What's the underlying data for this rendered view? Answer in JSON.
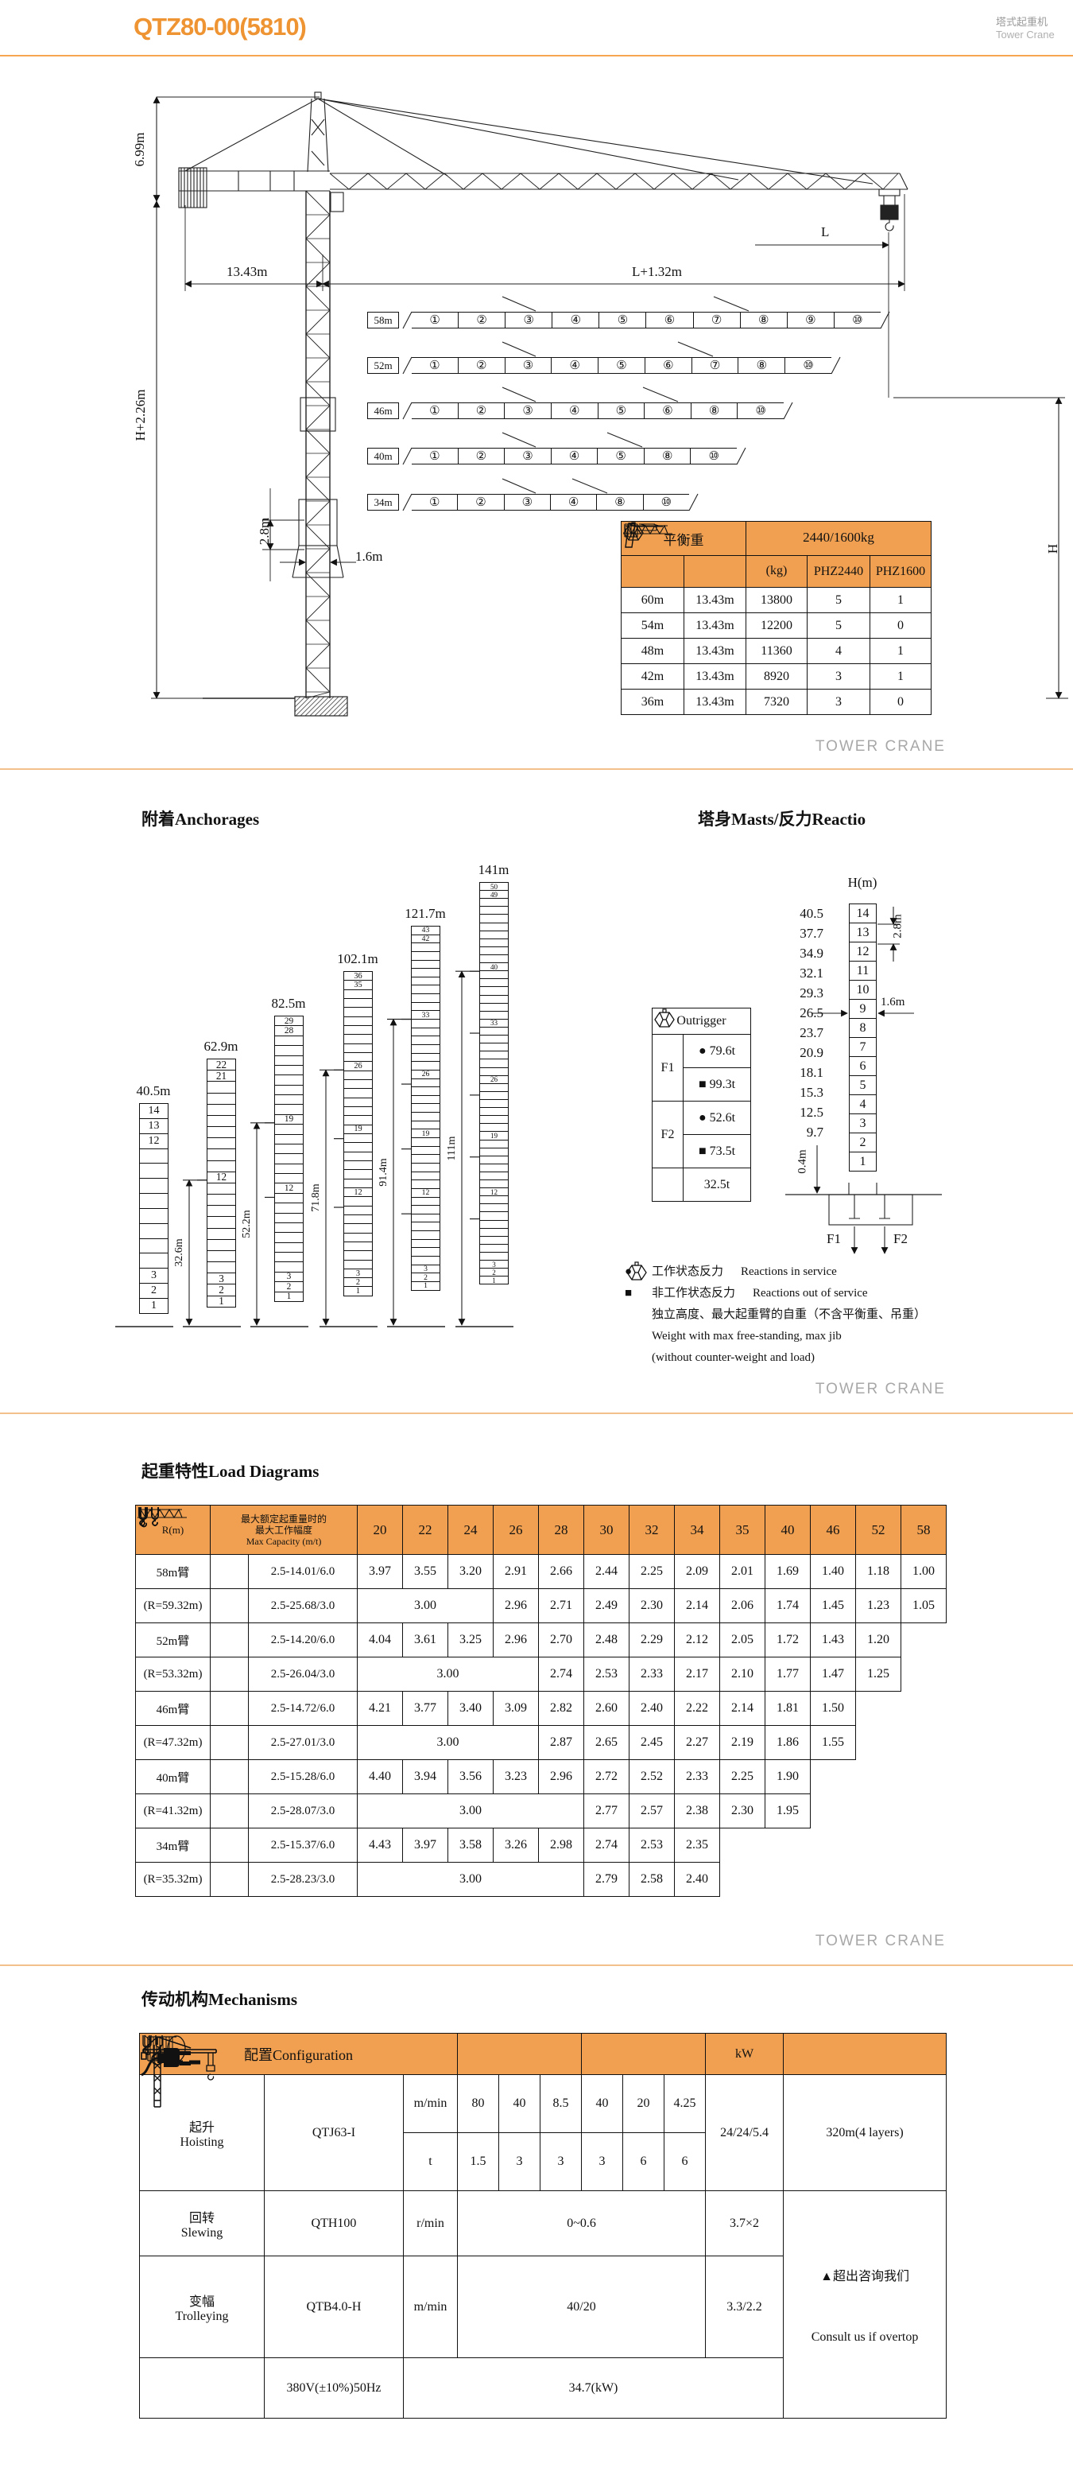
{
  "header": {
    "model": "QTZ80-00(5810)",
    "product_cn": "塔式起重机",
    "product_en": "Tower Crane"
  },
  "footer_text": "TOWER CRANE",
  "colors": {
    "accent": "#EF9433",
    "table_header": "#F0A050",
    "separator": "#F3C08C",
    "footer_gray": "#A8A8A8"
  },
  "drawing": {
    "dims": {
      "head_height": "6.99m",
      "tower_height": "H+2.26m",
      "counter_radius": "13.43m",
      "jib_plus": "L+1.32m",
      "load_radius": "L",
      "hook_height": "H",
      "mast_section": "2.8m",
      "mast_width": "1.6m"
    },
    "jib_configs": [
      {
        "length": "58m",
        "segments": [
          "①",
          "②",
          "③",
          "④",
          "⑤",
          "⑥",
          "⑦",
          "⑧",
          "⑨",
          "⑩"
        ]
      },
      {
        "length": "52m",
        "segments": [
          "①",
          "②",
          "③",
          "④",
          "⑤",
          "⑥",
          "⑦",
          "⑧",
          "⑩"
        ]
      },
      {
        "length": "46m",
        "segments": [
          "①",
          "②",
          "③",
          "④",
          "⑤",
          "⑥",
          "⑧",
          "⑩"
        ]
      },
      {
        "length": "40m",
        "segments": [
          "①",
          "②",
          "③",
          "④",
          "⑤",
          "⑧",
          "⑩"
        ]
      },
      {
        "length": "34m",
        "segments": [
          "①",
          "②",
          "③",
          "④",
          "⑧",
          "⑩"
        ]
      }
    ],
    "counterweight_table": {
      "title_left": "平衡重",
      "title_right": "2440/1600kg",
      "kg_label": "(kg)",
      "col_phz2440": "PHZ2440",
      "col_phz1600": "PHZ1600",
      "rows": [
        [
          "60m",
          "13.43m",
          "13800",
          "5",
          "1"
        ],
        [
          "54m",
          "13.43m",
          "12200",
          "5",
          "0"
        ],
        [
          "48m",
          "13.43m",
          "11360",
          "4",
          "1"
        ],
        [
          "42m",
          "13.43m",
          "8920",
          "3",
          "1"
        ],
        [
          "36m",
          "13.43m",
          "7320",
          "3",
          "0"
        ]
      ]
    }
  },
  "anchorage": {
    "title": "附着Anchorages",
    "towers": [
      {
        "label": "40.5m",
        "cells": 14,
        "numbered": [
          1,
          2,
          3,
          12,
          13,
          14
        ],
        "anchors": [],
        "dim": null
      },
      {
        "label": "62.9m",
        "cells": 22,
        "numbered": [
          1,
          2,
          3,
          12,
          21,
          22
        ],
        "anchors": [
          12
        ],
        "dim": "32.6m"
      },
      {
        "label": "82.5m",
        "cells": 29,
        "numbered": [
          1,
          2,
          3,
          12,
          19,
          28,
          29
        ],
        "anchors": [
          12,
          19
        ],
        "dim": "52.2m"
      },
      {
        "label": "102.1m",
        "cells": 36,
        "numbered": [
          1,
          2,
          3,
          12,
          19,
          26,
          35,
          36
        ],
        "anchors": [
          12,
          19,
          26
        ],
        "dim": "71.8m"
      },
      {
        "label": "121.7m",
        "cells": 43,
        "numbered": [
          1,
          2,
          3,
          12,
          19,
          26,
          33,
          42,
          43
        ],
        "anchors": [
          12,
          19,
          26,
          33
        ],
        "dim": "91.4m"
      },
      {
        "label": "141m",
        "cells": 50,
        "numbered": [
          1,
          2,
          3,
          12,
          19,
          26,
          33,
          40,
          49,
          50
        ],
        "anchors": [
          12,
          19,
          26,
          33,
          40
        ],
        "dim": "111m"
      }
    ]
  },
  "reactions": {
    "title": "塔身Masts/反力Reactio",
    "h_label": "H(m)",
    "cells": 14,
    "heights": {
      "14": "40.5",
      "13": "37.7",
      "12": "34.9",
      "11": "32.1",
      "10": "29.3",
      "9": "26.5",
      "8": "23.7",
      "7": "20.9",
      "6": "18.1",
      "5": "15.3",
      "4": "12.5",
      "3": "9.7"
    },
    "dims": {
      "mast_section": "2.8m",
      "mast_width": "1.6m",
      "base_offset": "0.4m"
    },
    "base_f1": "F1",
    "base_f2": "F2",
    "outrigger": {
      "title": "Outrigger",
      "f1": "F1",
      "f2": "F2",
      "f1_in_service": "79.6t",
      "f1_out_service": "99.3t",
      "f2_in_service": "52.6t",
      "f2_out_service": "73.5t",
      "free_standing_weight": "32.5t"
    },
    "legend": [
      {
        "sym": "●",
        "cn": "工作状态反力",
        "en": "Reactions in service"
      },
      {
        "sym": "■",
        "cn": "非工作状态反力",
        "en": "Reactions out of service"
      },
      {
        "sym": "cw-icon",
        "cn": "独立高度、最大起重臂的自重（不含平衡重、吊重）",
        "en": ""
      },
      {
        "sym": "",
        "cn": "",
        "en": "Weight with max free-standing, max jib"
      },
      {
        "sym": "",
        "cn": "",
        "en": "(without counter-weight and load)"
      }
    ]
  },
  "loads": {
    "title": "起重特性Load Diagrams",
    "radius_label": "R(m)",
    "capacity_header": [
      "最大额定起重量时的",
      "最大工作幅度",
      "Max Capacity (m/t)"
    ],
    "radii": [
      "20",
      "22",
      "24",
      "26",
      "28",
      "30",
      "32",
      "34",
      "35",
      "40",
      "46",
      "52",
      "58"
    ],
    "span_value": "3.00",
    "rows": [
      {
        "label": "58m臂",
        "hook": "double",
        "cap": "2.5-14.01/6.0",
        "span": 0,
        "vals": [
          "3.97",
          "3.55",
          "3.20",
          "2.91",
          "2.66",
          "2.44",
          "2.25",
          "2.09",
          "2.01",
          "1.69",
          "1.40",
          "1.18",
          "1.00"
        ]
      },
      {
        "label": "(R=59.32m)",
        "hook": "single",
        "cap": "2.5-25.68/3.0",
        "span": 3,
        "vals": [
          "2.96",
          "2.71",
          "2.49",
          "2.30",
          "2.14",
          "2.06",
          "1.74",
          "1.45",
          "1.23",
          "1.05"
        ]
      },
      {
        "label": "52m臂",
        "hook": "double",
        "cap": "2.5-14.20/6.0",
        "span": 0,
        "vals": [
          "4.04",
          "3.61",
          "3.25",
          "2.96",
          "2.70",
          "2.48",
          "2.29",
          "2.12",
          "2.05",
          "1.72",
          "1.43",
          "1.20"
        ]
      },
      {
        "label": "(R=53.32m)",
        "hook": "single",
        "cap": "2.5-26.04/3.0",
        "span": 4,
        "vals": [
          "2.74",
          "2.53",
          "2.33",
          "2.17",
          "2.10",
          "1.77",
          "1.47",
          "1.25"
        ]
      },
      {
        "label": "46m臂",
        "hook": "double",
        "cap": "2.5-14.72/6.0",
        "span": 0,
        "vals": [
          "4.21",
          "3.77",
          "3.40",
          "3.09",
          "2.82",
          "2.60",
          "2.40",
          "2.22",
          "2.14",
          "1.81",
          "1.50"
        ]
      },
      {
        "label": "(R=47.32m)",
        "hook": "single",
        "cap": "2.5-27.01/3.0",
        "span": 4,
        "vals": [
          "2.87",
          "2.65",
          "2.45",
          "2.27",
          "2.19",
          "1.86",
          "1.55"
        ]
      },
      {
        "label": "40m臂",
        "hook": "double",
        "cap": "2.5-15.28/6.0",
        "span": 0,
        "vals": [
          "4.40",
          "3.94",
          "3.56",
          "3.23",
          "2.96",
          "2.72",
          "2.52",
          "2.33",
          "2.25",
          "1.90"
        ]
      },
      {
        "label": "(R=41.32m)",
        "hook": "single",
        "cap": "2.5-28.07/3.0",
        "span": 5,
        "vals": [
          "2.77",
          "2.57",
          "2.38",
          "2.30",
          "1.95"
        ]
      },
      {
        "label": "34m臂",
        "hook": "double",
        "cap": "2.5-15.37/6.0",
        "span": 0,
        "vals": [
          "4.43",
          "3.97",
          "3.58",
          "3.26",
          "2.98",
          "2.74",
          "2.53",
          "2.35"
        ]
      },
      {
        "label": "(R=35.32m)",
        "hook": "single",
        "cap": "2.5-28.23/3.0",
        "span": 5,
        "vals": [
          "2.79",
          "2.58",
          "2.40"
        ]
      }
    ]
  },
  "mechanisms": {
    "title": "传动机构Mechanisms",
    "config_header": "配置Configuration",
    "kw_header": "kW",
    "hoist": {
      "label_cn": "起升",
      "label_en": "Hoisting",
      "model": "QTJ63-I",
      "unit_speed": "m/min",
      "speeds": [
        "80",
        "40",
        "8.5",
        "40",
        "20",
        "4.25"
      ],
      "unit_load": "t",
      "hook_loads": [
        "1.5",
        "3",
        "3",
        "3",
        "6",
        "6"
      ],
      "kw": "24/24/5.4",
      "rope": "320m(4 layers)"
    },
    "slew": {
      "label_cn": "回转",
      "label_en": "Slewing",
      "model": "QTH100",
      "unit": "r/min",
      "value": "0~0.6",
      "kw": "3.7×2"
    },
    "trolley": {
      "label_cn": "变幅",
      "label_en": "Trolleying",
      "model": "QTB4.0-H",
      "unit": "m/min",
      "value": "40/20",
      "kw": "3.3/2.2"
    },
    "power": {
      "supply": "380V(±10%)50Hz",
      "total": "34.7(kW)"
    },
    "note_cn": "▲超出咨询我们",
    "note_en": "Consult us if overtop"
  }
}
